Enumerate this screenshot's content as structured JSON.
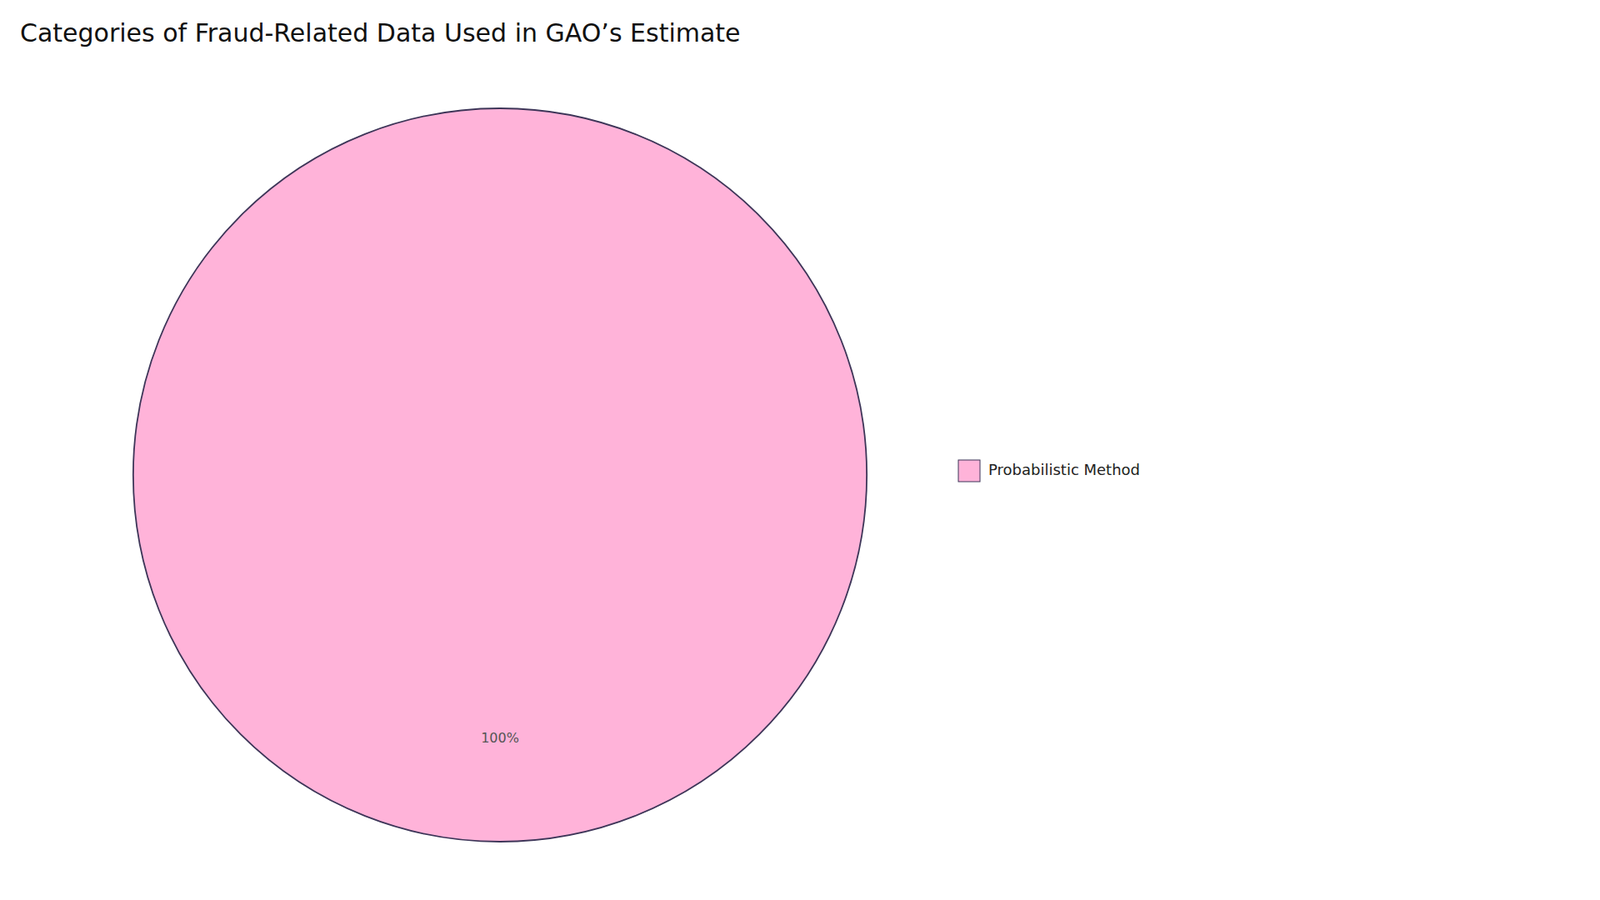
{
  "chart_data": {
    "type": "pie",
    "title": "Categories of Fraud-Related Data Used in GAO’s Estimate",
    "categories": [
      "Probabilistic Method"
    ],
    "values": [
      100
    ],
    "value_labels": [
      "100%"
    ],
    "colors": [
      "#FFB3D9"
    ],
    "data_labels": true,
    "legend": "right"
  }
}
